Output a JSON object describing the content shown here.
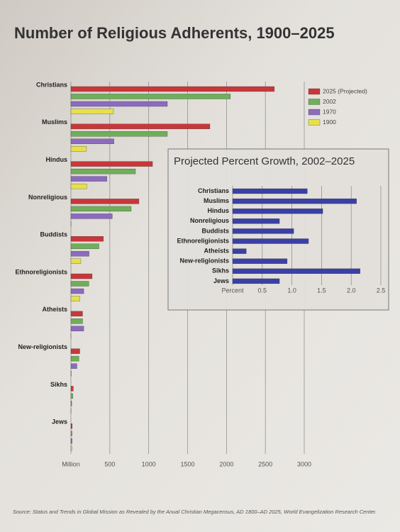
{
  "chart_data": [
    {
      "type": "bar",
      "orientation": "horizontal",
      "title": "Number of Religious Adherents, 1900–2025",
      "categories": [
        "Christians",
        "Muslims",
        "Hindus",
        "Nonreligious",
        "Buddists",
        "Ethnoreligionists",
        "Atheists",
        "New-religionists",
        "Sikhs",
        "Jews"
      ],
      "series": [
        {
          "name": "2025 (Projected)",
          "color": "#c8373a",
          "values": [
            2616,
            1787,
            1049,
            875,
            418,
            273,
            150,
            114,
            31,
            17
          ]
        },
        {
          "name": "2002",
          "color": "#6fae5a",
          "values": [
            2051,
            1240,
            830,
            775,
            360,
            230,
            150,
            103,
            24,
            14.5
          ]
        },
        {
          "name": "1970",
          "color": "#8c6bbf",
          "values": [
            1240,
            553,
            463,
            532,
            233,
            165,
            165,
            77,
            10,
            15
          ]
        },
        {
          "name": "1900",
          "color": "#e8e04a",
          "values": [
            547,
            200,
            203,
            3,
            127,
            117,
            0.2,
            6,
            3,
            12
          ]
        }
      ],
      "xlim": [
        0,
        3000
      ],
      "xticks": [
        {
          "value": 0,
          "label": "Million"
        },
        500,
        1000,
        1500,
        2000,
        2500,
        3000
      ],
      "grid": true,
      "legend": "top-right",
      "source": "Source: Status and Trends in Global Mission as Revealed by the Anual Christian Megacensus, AD 1800–AD 2025, World Evangelization Research Center."
    },
    {
      "type": "bar",
      "orientation": "horizontal",
      "title": "Projected Percent Growth, 2002–2025",
      "categories": [
        "Christians",
        "Muslims",
        "Hindus",
        "Nonreligious",
        "Buddists",
        "Ethnoreligionists",
        "Atheists",
        "New-religionists",
        "Sikhs",
        "Jews"
      ],
      "values": [
        1.26,
        2.09,
        1.52,
        0.79,
        1.03,
        1.28,
        0.23,
        0.92,
        2.15,
        0.79
      ],
      "color": "#3b40a6",
      "xlim": [
        0,
        2.5
      ],
      "xticks": [
        {
          "value": 0,
          "label": "Percent"
        },
        0.5,
        {
          "value": 1,
          "label": "1.0"
        },
        1.5,
        {
          "value": 2,
          "label": "2.0"
        },
        2.5
      ],
      "grid": true
    }
  ]
}
